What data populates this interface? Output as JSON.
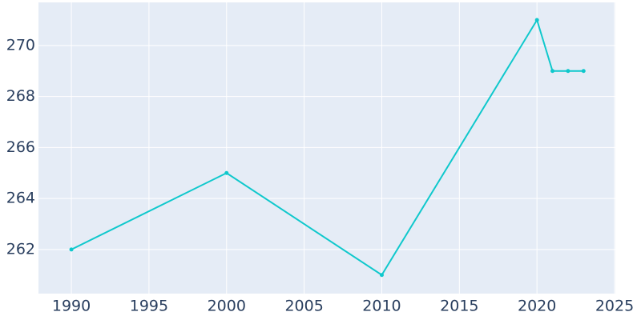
{
  "chart_data": {
    "type": "line",
    "x": [
      1990,
      2000,
      2010,
      2020,
      2021,
      2022,
      2023
    ],
    "series": [
      {
        "color": "#0fc8cc",
        "values": [
          262,
          265,
          261,
          271,
          269,
          269,
          269
        ]
      }
    ],
    "xlim": [
      1987.88,
      2025.05
    ],
    "xticks": [
      1990,
      1995,
      2000,
      2005,
      2010,
      2015,
      2020,
      2025
    ],
    "ylim": [
      260.27,
      271.69
    ],
    "yticks": [
      262,
      264,
      266,
      268,
      270
    ],
    "grid": true
  }
}
